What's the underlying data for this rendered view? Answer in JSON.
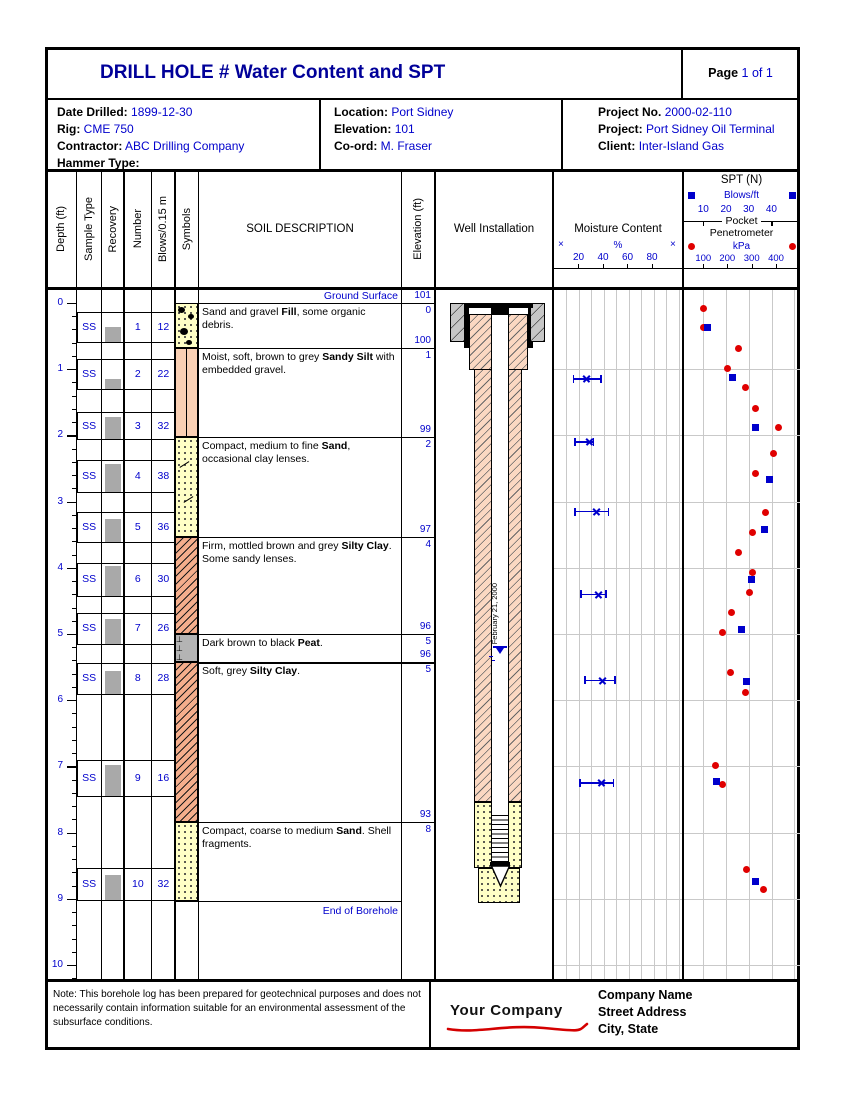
{
  "page": {
    "title": "DRILL HOLE # Water Content and SPT",
    "page_label": "Page",
    "page_value": "1 of 1"
  },
  "info": {
    "col1": [
      {
        "label": "Date Drilled:",
        "value": "1899-12-30"
      },
      {
        "label": "Rig:",
        "value": "CME 750"
      },
      {
        "label": "Contractor:",
        "value": "ABC Drilling Company"
      },
      {
        "label": "Hammer Type:",
        "value": ""
      }
    ],
    "col2": [
      {
        "label": "Location:",
        "value": "Port Sidney"
      },
      {
        "label": "Elevation:",
        "value": "101"
      },
      {
        "label": "Co-ord:",
        "value": "M. Fraser"
      }
    ],
    "col3": [
      {
        "label": "Project No.",
        "value": "2000-02-110"
      },
      {
        "label": "Project:",
        "value": "Port Sidney Oil Terminal"
      },
      {
        "label": "Client:",
        "value": "Inter-Island Gas"
      }
    ]
  },
  "column_headers": {
    "depth": "Depth (ft)",
    "sample_type": "Sample Type",
    "recovery": "Recovery",
    "number": "Number",
    "blows": "Blows/0.15 m",
    "symbols": "Symbols",
    "soil_description": "SOIL DESCRIPTION",
    "elevation": "Elevation (ft)",
    "well": "Well Installation"
  },
  "moisture_header": {
    "title": "Moisture Content",
    "marker": "×",
    "unit": "%",
    "ticks": [
      20,
      40,
      60,
      80
    ]
  },
  "spt_header": {
    "title": "SPT (N)",
    "subtitle": "Blows/ft",
    "ticks": [
      10,
      20,
      30,
      40
    ],
    "pp_word1": "Pocket",
    "pp_word2": "Penetrometer",
    "pp_unit": "kPa",
    "pp_ticks": [
      100,
      200,
      300,
      400
    ]
  },
  "labels": {
    "ground_surface": "Ground Surface",
    "end_of_borehole": "End of Borehole"
  },
  "chart_data": {
    "type": "borehole-log",
    "depth_axis": {
      "unit": "ft",
      "min": 0,
      "max": 10,
      "major_tick": 1,
      "minor_tick": 0.2
    },
    "ground_elevation": 101,
    "end_of_borehole_depth_ft": 9.03,
    "boundaries": [
      {
        "depth_ft": 0,
        "elev_label": "101",
        "depth_label": "0"
      },
      {
        "depth_ft": 0.68,
        "elev_label": "100",
        "depth_label": "1"
      },
      {
        "depth_ft": 2.02,
        "elev_label": "99",
        "depth_label": "2"
      },
      {
        "depth_ft": 3.53,
        "elev_label": "97",
        "depth_label": "4"
      },
      {
        "depth_ft": 5.0,
        "elev_label": "96",
        "depth_label": "5"
      },
      {
        "depth_ft": 5.43,
        "elev_label": "96",
        "depth_label": "5"
      },
      {
        "depth_ft": 7.84,
        "elev_label": "93",
        "depth_label": "8"
      }
    ],
    "layers": [
      {
        "top_ft": 0,
        "bot_ft": 0.68,
        "pattern": "fill",
        "desc": [
          [
            "Sand and gravel ",
            0
          ],
          [
            "Fill",
            1
          ],
          [
            ", some organic debris.",
            0
          ]
        ]
      },
      {
        "top_ft": 0.68,
        "bot_ft": 2.02,
        "pattern": "silt",
        "desc": [
          [
            "Moist, soft, brown to grey ",
            0
          ],
          [
            "Sandy Silt",
            1
          ],
          [
            " with embedded gravel.",
            0
          ]
        ]
      },
      {
        "top_ft": 2.02,
        "bot_ft": 3.53,
        "pattern": "sand-lenses",
        "desc": [
          [
            "Compact, medium to fine ",
            0
          ],
          [
            "Sand",
            1
          ],
          [
            ", occasional clay lenses.",
            0
          ]
        ]
      },
      {
        "top_ft": 3.53,
        "bot_ft": 5.0,
        "pattern": "clay",
        "desc": [
          [
            "Firm, mottled brown and grey ",
            0
          ],
          [
            "Silty Clay",
            1
          ],
          [
            ". Some sandy lenses.",
            0
          ]
        ]
      },
      {
        "top_ft": 5.0,
        "bot_ft": 5.43,
        "pattern": "peat",
        "desc": [
          [
            "Dark brown to black ",
            0
          ],
          [
            "Peat",
            1
          ],
          [
            ".",
            0
          ]
        ]
      },
      {
        "top_ft": 5.43,
        "bot_ft": 7.84,
        "pattern": "clay",
        "desc": [
          [
            "Soft, grey ",
            0
          ],
          [
            "Silty Clay",
            1
          ],
          [
            ".",
            0
          ]
        ]
      },
      {
        "top_ft": 7.84,
        "bot_ft": 9.03,
        "pattern": "sand",
        "desc": [
          [
            "Compact, coarse to medium ",
            0
          ],
          [
            "Sand",
            1
          ],
          [
            ". Shell fragments.",
            0
          ]
        ]
      }
    ],
    "samples": [
      {
        "type": "SS",
        "num": 1,
        "blows": 12,
        "top_ft": 0.13,
        "bot_ft": 0.61,
        "recovery": 0.47
      },
      {
        "type": "SS",
        "num": 2,
        "blows": 22,
        "top_ft": 0.84,
        "bot_ft": 1.31,
        "recovery": 0.32
      },
      {
        "type": "SS",
        "num": 3,
        "blows": 32,
        "top_ft": 1.64,
        "bot_ft": 2.07,
        "recovery": 0.76
      },
      {
        "type": "SS",
        "num": 4,
        "blows": 38,
        "top_ft": 2.37,
        "bot_ft": 2.87,
        "recovery": 0.85
      },
      {
        "type": "SS",
        "num": 5,
        "blows": 36,
        "top_ft": 3.15,
        "bot_ft": 3.63,
        "recovery": 0.74
      },
      {
        "type": "SS",
        "num": 6,
        "blows": 30,
        "top_ft": 3.93,
        "bot_ft": 4.44,
        "recovery": 0.88
      },
      {
        "type": "SS",
        "num": 7,
        "blows": 26,
        "top_ft": 4.69,
        "bot_ft": 5.17,
        "recovery": 0.79
      },
      {
        "type": "SS",
        "num": 8,
        "blows": 28,
        "top_ft": 5.44,
        "bot_ft": 5.92,
        "recovery": 0.73
      },
      {
        "type": "SS",
        "num": 9,
        "blows": 16,
        "top_ft": 6.9,
        "bot_ft": 7.46,
        "recovery": 0.84
      },
      {
        "type": "SS",
        "num": 10,
        "blows": 32,
        "top_ft": 8.54,
        "bot_ft": 9.04,
        "recovery": 0.77
      }
    ],
    "moisture": {
      "unit": "%",
      "xlim": [
        0,
        100
      ],
      "points": [
        {
          "depth_ft": 1.15,
          "wc": 26,
          "low": 16,
          "high": 38
        },
        {
          "depth_ft": 2.1,
          "wc": 29,
          "low": 17,
          "high": 32
        },
        {
          "depth_ft": 3.15,
          "wc": 34,
          "low": 17,
          "high": 44
        },
        {
          "depth_ft": 4.4,
          "wc": 36,
          "low": 22,
          "high": 42
        },
        {
          "depth_ft": 5.7,
          "wc": 39,
          "low": 25,
          "high": 49
        },
        {
          "depth_ft": 7.25,
          "wc": 38,
          "low": 21,
          "high": 48
        }
      ]
    },
    "spt": {
      "unit": "Blows/ft",
      "xlim": [
        0,
        50
      ],
      "points": [
        {
          "depth_ft": 0.37,
          "n": 12
        },
        {
          "depth_ft": 1.13,
          "n": 23
        },
        {
          "depth_ft": 1.88,
          "n": 33
        },
        {
          "depth_ft": 2.66,
          "n": 39
        },
        {
          "depth_ft": 3.42,
          "n": 37
        },
        {
          "depth_ft": 4.18,
          "n": 31
        },
        {
          "depth_ft": 4.93,
          "n": 27
        },
        {
          "depth_ft": 5.71,
          "n": 29
        },
        {
          "depth_ft": 7.23,
          "n": 16
        },
        {
          "depth_ft": 8.74,
          "n": 33
        }
      ]
    },
    "pocket_penetrometer": {
      "unit": "kPa",
      "xlim": [
        0,
        500
      ],
      "points": [
        {
          "depth_ft": 0.08,
          "kpa": 100
        },
        {
          "depth_ft": 0.37,
          "kpa": 100
        },
        {
          "depth_ft": 0.69,
          "kpa": 255
        },
        {
          "depth_ft": 0.99,
          "kpa": 205
        },
        {
          "depth_ft": 1.28,
          "kpa": 285
        },
        {
          "depth_ft": 1.59,
          "kpa": 330
        },
        {
          "depth_ft": 1.88,
          "kpa": 430
        },
        {
          "depth_ft": 2.27,
          "kpa": 410
        },
        {
          "depth_ft": 2.58,
          "kpa": 330
        },
        {
          "depth_ft": 3.16,
          "kpa": 375
        },
        {
          "depth_ft": 3.47,
          "kpa": 315
        },
        {
          "depth_ft": 3.77,
          "kpa": 255
        },
        {
          "depth_ft": 4.07,
          "kpa": 315
        },
        {
          "depth_ft": 4.37,
          "kpa": 305
        },
        {
          "depth_ft": 4.68,
          "kpa": 225
        },
        {
          "depth_ft": 4.97,
          "kpa": 185
        },
        {
          "depth_ft": 5.58,
          "kpa": 220
        },
        {
          "depth_ft": 5.88,
          "kpa": 285
        },
        {
          "depth_ft": 6.98,
          "kpa": 155
        },
        {
          "depth_ft": 7.28,
          "kpa": 185
        },
        {
          "depth_ft": 8.56,
          "kpa": 290
        },
        {
          "depth_ft": 8.86,
          "kpa": 365
        }
      ]
    },
    "well": {
      "water_level_date": "February 21, 2000",
      "water_level_depth_ft": 5.2
    }
  },
  "footer": {
    "note": "Note: This borehole log has been prepared for geotechnical purposes and does not necessarily contain information suitable for an environmental assessment of the subsurface conditions.",
    "logo_text": "Your Company",
    "company": [
      "Company Name",
      "Street Address",
      "City, State"
    ]
  }
}
